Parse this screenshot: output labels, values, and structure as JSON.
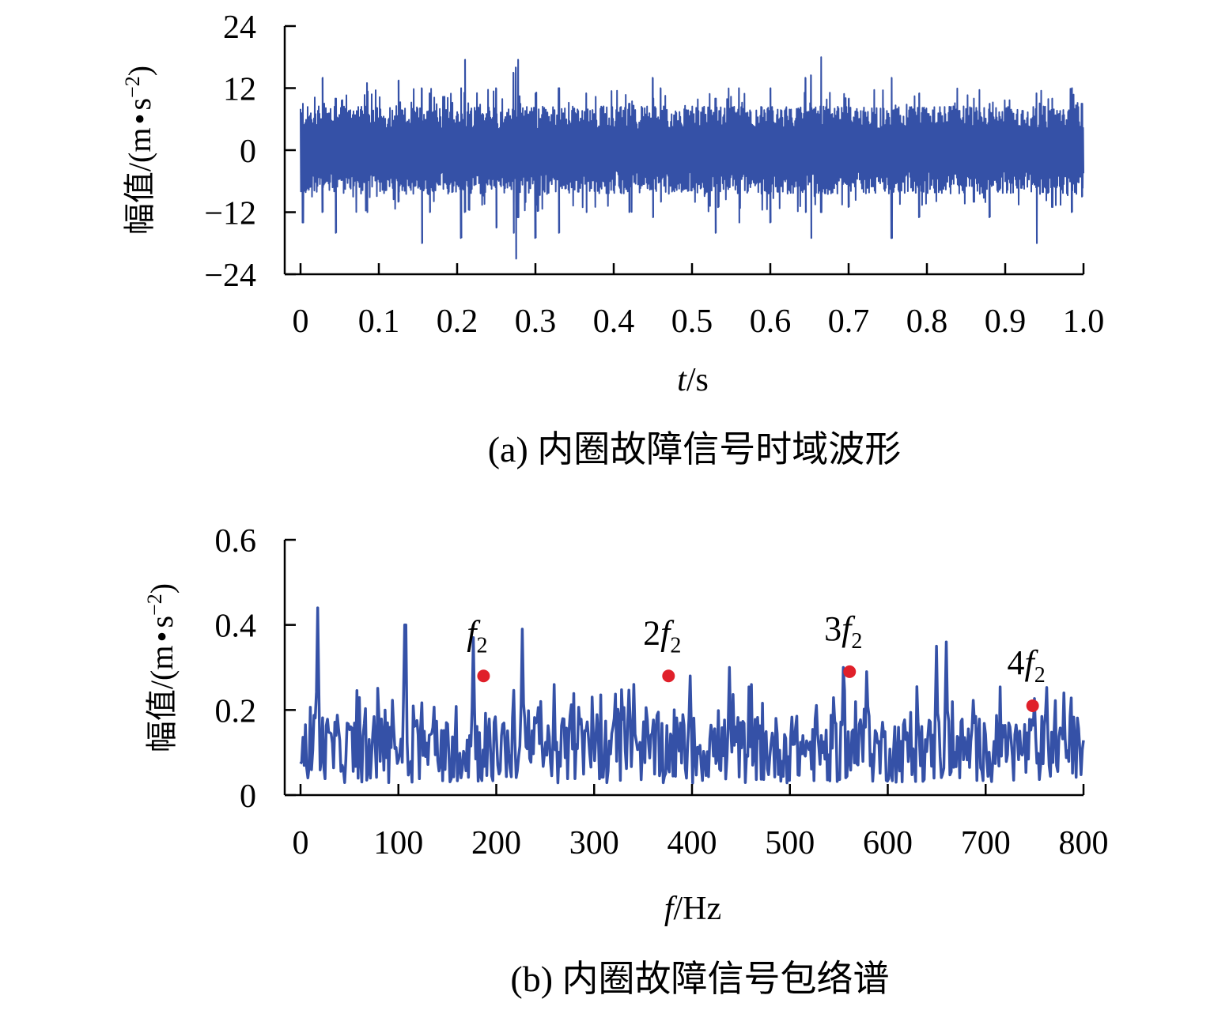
{
  "colors": {
    "series": "#3551a7",
    "marker": "#e0202a",
    "axis": "#000000"
  },
  "chart_data": [
    {
      "type": "line",
      "caption": "(a) 内圈故障信号时域波形",
      "ylabel": {
        "main": "幅值/(m",
        "dot": "•",
        "s": "s",
        "exp": "−2",
        "close": ")"
      },
      "xlabel": {
        "var": "t",
        "unit": "/s"
      },
      "xlim": [
        0,
        1.0
      ],
      "ylim": [
        -24,
        24
      ],
      "x_ticks": [
        0,
        0.1,
        0.2,
        0.3,
        0.4,
        0.5,
        0.6,
        0.7,
        0.8,
        0.9,
        1.0
      ],
      "x_tick_labels": [
        "0",
        "0.1",
        "0.2",
        "0.3",
        "0.4",
        "0.5",
        "0.6",
        "0.7",
        "0.8",
        "0.9",
        "1.0"
      ],
      "y_ticks": [
        24,
        12,
        0,
        -12,
        -24
      ],
      "y_tick_labels": [
        "24",
        "12",
        "0",
        "−12",
        "−24"
      ],
      "grid": false,
      "series_note": "dense vibration signal, amplitude mostly within about ±8, peaks reach about +18 and −22",
      "series": [
        {
          "x": [
            0,
            0.003,
            0.028,
            0.045,
            0.085,
            0.125,
            0.155,
            0.165,
            0.205,
            0.21,
            0.25,
            0.272,
            0.275,
            0.278,
            0.3,
            0.33,
            0.365,
            0.42,
            0.45,
            0.46,
            0.53,
            0.56,
            0.6,
            0.645,
            0.652,
            0.665,
            0.7,
            0.755,
            0.79,
            0.86,
            0.88,
            0.94,
            0.96,
            0.985,
            0.998
          ],
          "peaks_pos": [
            8,
            9,
            14,
            10,
            13,
            13.5,
            12,
            11,
            12,
            17.5,
            12,
            15,
            16,
            17.5,
            11,
            12,
            11,
            9,
            14,
            12,
            10,
            12,
            12,
            14,
            14.5,
            18,
            10,
            14,
            11,
            10,
            9,
            11,
            10,
            12,
            9
          ],
          "peaks_neg": [
            -8,
            -14,
            -12,
            -16,
            -12,
            -10,
            -18,
            -12,
            -17,
            -12,
            -15,
            -16,
            -21,
            -13,
            -17,
            -16,
            -12,
            -12,
            -13,
            -10,
            -16,
            -14,
            -14,
            -12,
            -17,
            -12,
            -11,
            -17,
            -13,
            -10,
            -13,
            -18,
            -11,
            -12,
            -9
          ]
        }
      ]
    },
    {
      "type": "line",
      "caption": "(b) 内圈故障信号包络谱",
      "ylabel": {
        "main": "幅值/(m",
        "dot": "•",
        "s": "s",
        "exp": "−2",
        "close": ")"
      },
      "xlabel": {
        "var": "f",
        "unit": "/Hz"
      },
      "xlim": [
        0,
        800
      ],
      "ylim": [
        0,
        0.6
      ],
      "x_ticks": [
        0,
        100,
        200,
        300,
        400,
        500,
        600,
        700,
        800
      ],
      "x_tick_labels": [
        "0",
        "100",
        "200",
        "300",
        "400",
        "500",
        "600",
        "700",
        "800"
      ],
      "y_ticks": [
        0.6,
        0.4,
        0.2,
        0
      ],
      "y_tick_labels": [
        "0.6",
        "0.4",
        "0.2",
        "0"
      ],
      "grid": false,
      "peaks": [
        {
          "x": 18,
          "y": 0.44
        },
        {
          "x": 107,
          "y": 0.4
        },
        {
          "x": 176,
          "y": 0.37
        },
        {
          "x": 227,
          "y": 0.39
        },
        {
          "x": 245,
          "y": 0.22
        },
        {
          "x": 340,
          "y": 0.26
        },
        {
          "x": 398,
          "y": 0.28
        },
        {
          "x": 438,
          "y": 0.3
        },
        {
          "x": 555,
          "y": 0.3
        },
        {
          "x": 578,
          "y": 0.29
        },
        {
          "x": 650,
          "y": 0.35
        },
        {
          "x": 660,
          "y": 0.36
        },
        {
          "x": 780,
          "y": 0.24
        }
      ],
      "markers": [
        {
          "x": 187,
          "y": 0.28,
          "label_coef": "",
          "label_var": "f",
          "label_sub": "2"
        },
        {
          "x": 376,
          "y": 0.28,
          "label_coef": "2",
          "label_var": "f",
          "label_sub": "2"
        },
        {
          "x": 561,
          "y": 0.29,
          "label_coef": "3",
          "label_var": "f",
          "label_sub": "2"
        },
        {
          "x": 748,
          "y": 0.21,
          "label_coef": "4",
          "label_var": "f",
          "label_sub": "2"
        }
      ]
    }
  ]
}
